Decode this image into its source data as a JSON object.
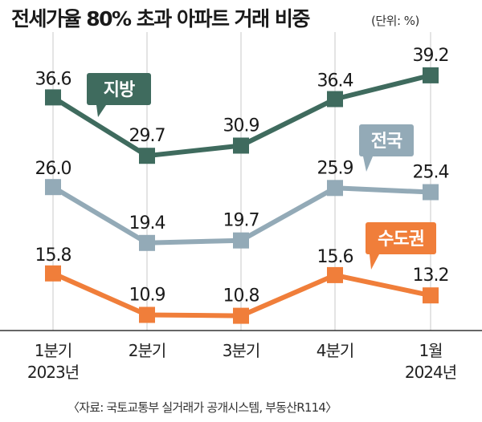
{
  "header": {
    "title": "전세가율 80% 초과 아파트 거래 비중",
    "unit": "(단위: %)"
  },
  "footer": {
    "source": "〈자료: 국토교통부 실거래가 공개시스템, 부동산R114〉"
  },
  "chart_data": {
    "type": "line",
    "title": "전세가율 80% 초과 아파트 거래 비중",
    "unit_label": "(단위: %)",
    "categories": [
      [
        "1분기",
        "2023년"
      ],
      [
        "2분기"
      ],
      [
        "3분기"
      ],
      [
        "4분기"
      ],
      [
        "1월",
        "2024년"
      ]
    ],
    "series": [
      {
        "name": "지방",
        "color": "#3f6b5e",
        "values": [
          36.6,
          29.7,
          30.9,
          36.4,
          39.2
        ]
      },
      {
        "name": "전국",
        "color": "#93aab7",
        "values": [
          26.0,
          19.4,
          19.7,
          25.9,
          25.4
        ]
      },
      {
        "name": "수도권",
        "color": "#f07e3a",
        "values": [
          15.8,
          10.9,
          10.8,
          15.6,
          13.2
        ]
      }
    ],
    "value_labels": [
      [
        "36.6",
        "29.7",
        "30.9",
        "36.4",
        "39.2"
      ],
      [
        "26.0",
        "19.4",
        "19.7",
        "25.9",
        "25.4"
      ],
      [
        "15.8",
        "10.9",
        "10.8",
        "15.6",
        "13.2"
      ]
    ],
    "grid": "vertical",
    "legend": "inline callouts"
  }
}
